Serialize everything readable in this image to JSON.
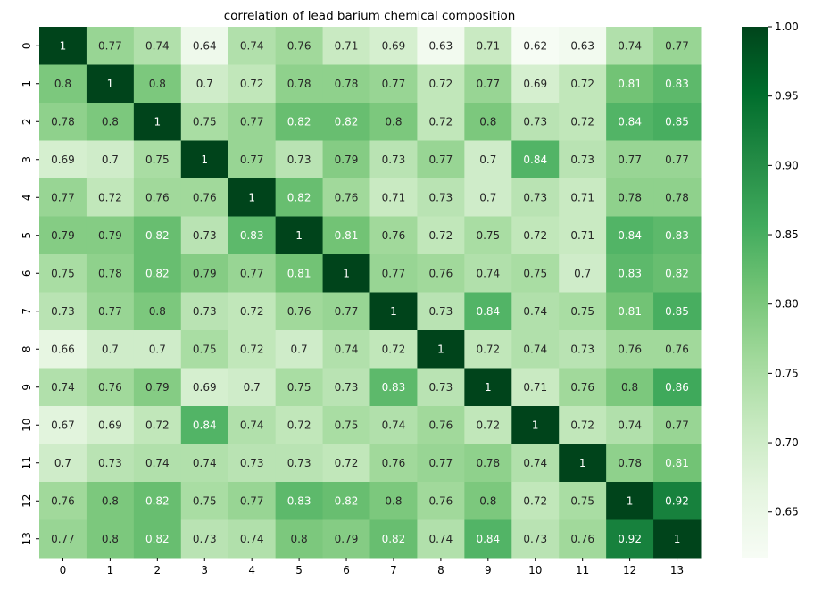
{
  "chart_data": {
    "type": "heatmap",
    "title": "correlation of lead barium chemical composition",
    "x_labels": [
      "0",
      "1",
      "2",
      "3",
      "4",
      "5",
      "6",
      "7",
      "8",
      "9",
      "10",
      "11",
      "12",
      "13"
    ],
    "y_labels": [
      "0",
      "1",
      "2",
      "3",
      "4",
      "5",
      "6",
      "7",
      "8",
      "9",
      "10",
      "11",
      "12",
      "13"
    ],
    "values": [
      [
        1,
        0.77,
        0.74,
        0.64,
        0.74,
        0.76,
        0.71,
        0.69,
        0.63,
        0.71,
        0.62,
        0.63,
        0.74,
        0.77
      ],
      [
        0.8,
        1,
        0.8,
        0.7,
        0.72,
        0.78,
        0.78,
        0.77,
        0.72,
        0.77,
        0.69,
        0.72,
        0.81,
        0.83
      ],
      [
        0.78,
        0.8,
        1,
        0.75,
        0.77,
        0.82,
        0.82,
        0.8,
        0.72,
        0.8,
        0.73,
        0.72,
        0.84,
        0.85
      ],
      [
        0.69,
        0.7,
        0.75,
        1,
        0.77,
        0.73,
        0.79,
        0.73,
        0.77,
        0.7,
        0.84,
        0.73,
        0.77,
        0.77
      ],
      [
        0.77,
        0.72,
        0.76,
        0.76,
        1,
        0.82,
        0.76,
        0.71,
        0.73,
        0.7,
        0.73,
        0.71,
        0.78,
        0.78
      ],
      [
        0.79,
        0.79,
        0.82,
        0.73,
        0.83,
        1,
        0.81,
        0.76,
        0.72,
        0.75,
        0.72,
        0.71,
        0.84,
        0.83
      ],
      [
        0.75,
        0.78,
        0.82,
        0.79,
        0.77,
        0.81,
        1,
        0.77,
        0.76,
        0.74,
        0.75,
        0.7,
        0.83,
        0.82
      ],
      [
        0.73,
        0.77,
        0.8,
        0.73,
        0.72,
        0.76,
        0.77,
        1,
        0.73,
        0.84,
        0.74,
        0.75,
        0.81,
        0.85
      ],
      [
        0.66,
        0.7,
        0.7,
        0.75,
        0.72,
        0.7,
        0.74,
        0.72,
        1,
        0.72,
        0.74,
        0.73,
        0.76,
        0.76
      ],
      [
        0.74,
        0.76,
        0.79,
        0.69,
        0.7,
        0.75,
        0.73,
        0.83,
        0.73,
        1,
        0.71,
        0.76,
        0.8,
        0.86
      ],
      [
        0.67,
        0.69,
        0.72,
        0.84,
        0.74,
        0.72,
        0.75,
        0.74,
        0.76,
        0.72,
        1,
        0.72,
        0.74,
        0.77
      ],
      [
        0.7,
        0.73,
        0.74,
        0.74,
        0.73,
        0.73,
        0.72,
        0.76,
        0.77,
        0.78,
        0.74,
        1,
        0.78,
        0.81
      ],
      [
        0.76,
        0.8,
        0.82,
        0.75,
        0.77,
        0.83,
        0.82,
        0.8,
        0.76,
        0.8,
        0.72,
        0.75,
        1,
        0.92
      ],
      [
        0.77,
        0.8,
        0.82,
        0.73,
        0.74,
        0.8,
        0.79,
        0.82,
        0.74,
        0.84,
        0.73,
        0.76,
        0.92,
        1
      ]
    ],
    "colorbar": {
      "min": 0.617,
      "max": 1.0,
      "ticks": [
        "1.00",
        "0.95",
        "0.90",
        "0.85",
        "0.80",
        "0.75",
        "0.70",
        "0.65"
      ],
      "colormap": "Greens"
    },
    "annotations": true,
    "grid": false
  }
}
